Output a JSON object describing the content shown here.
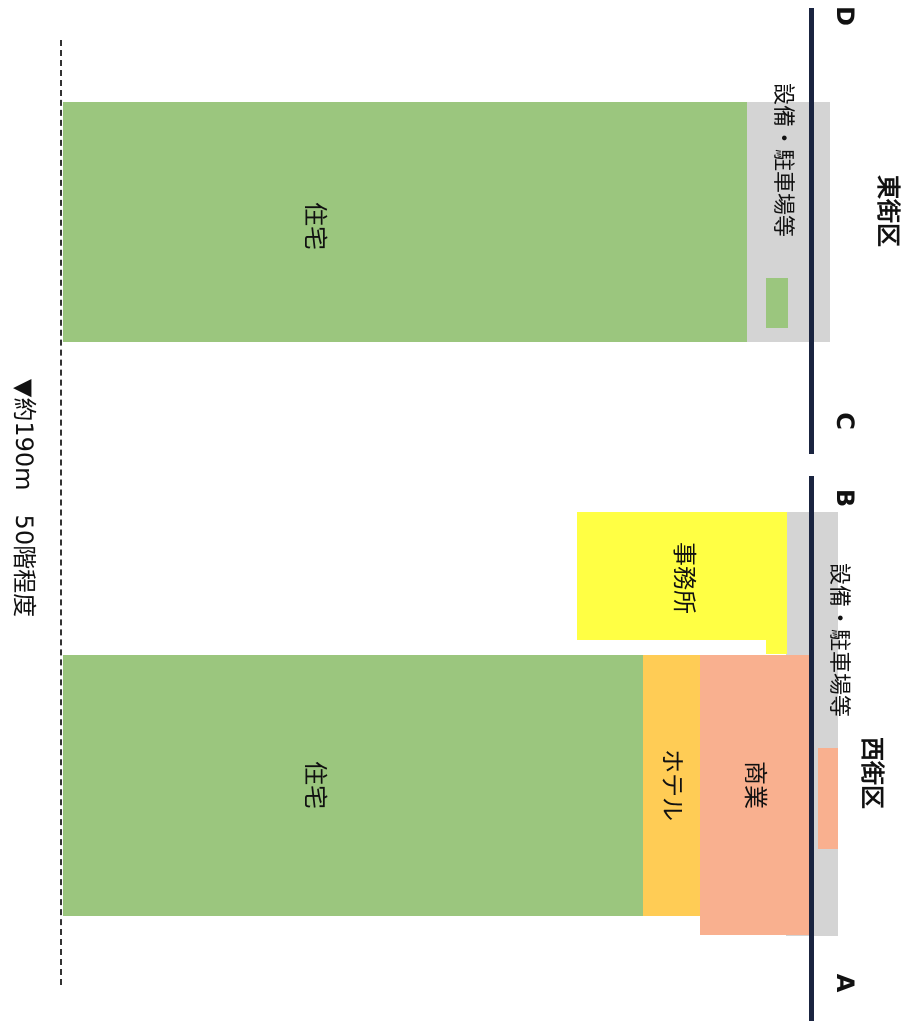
{
  "height_label": "▼約190m　50階程度",
  "districts": {
    "west": {
      "name": "西街区",
      "labels": {
        "residential": "住宅",
        "hotel": "ホテル",
        "commercial": "商業",
        "office": "事務所",
        "facilities": "設備・駐車場等"
      }
    },
    "east": {
      "name": "東街区",
      "labels": {
        "residential": "住宅",
        "facilities": "設備・駐車場等"
      }
    }
  },
  "points": {
    "a": "A",
    "b": "B",
    "c": "C",
    "d": "D"
  },
  "colors": {
    "residential": "#9bc67e",
    "hotel": "#ffcc55",
    "commercial": "#f9b08f",
    "office": "#ffff44",
    "facilities": "#d4d4d4",
    "ground": "#1a2440"
  }
}
